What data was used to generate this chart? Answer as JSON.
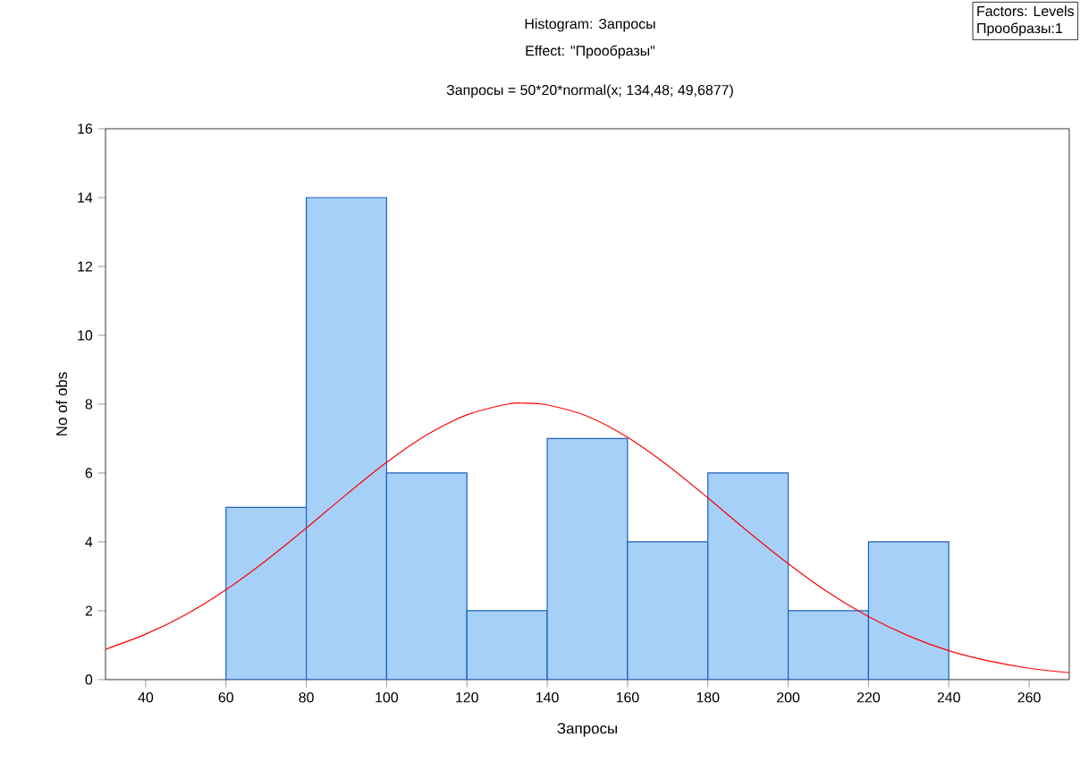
{
  "chart_data": {
    "type": "histogram",
    "title": "Histogram: Запросы",
    "subtitle": "Effect: \"Прообразы\"",
    "xlabel": "Запросы",
    "ylabel": "No of obs",
    "bins": [
      60,
      80,
      100,
      120,
      140,
      160,
      180,
      200,
      220,
      240
    ],
    "values": [
      5,
      14,
      6,
      2,
      7,
      4,
      6,
      2,
      4
    ],
    "color": "#a6d0f7",
    "xlim": [
      30,
      270
    ],
    "ylim": [
      0,
      16
    ],
    "xticks": [
      40,
      60,
      80,
      100,
      120,
      140,
      160,
      180,
      200,
      220,
      240,
      260
    ],
    "yticks": [
      0,
      2,
      4,
      6,
      8,
      10,
      12,
      14,
      16
    ],
    "series": [
      {
        "type": "line",
        "color": "#ff0000",
        "x": [
          30,
          40,
          50,
          60,
          70,
          80,
          90,
          100,
          110,
          120,
          130,
          134.48,
          140,
          150,
          160,
          170,
          180,
          190,
          200,
          210,
          220,
          230,
          240,
          250,
          260,
          270
        ],
        "values": [
          0.88,
          1.32,
          1.89,
          2.61,
          3.46,
          4.4,
          5.38,
          6.31,
          7.11,
          7.69,
          8.0,
          8.03,
          7.98,
          7.65,
          7.04,
          6.22,
          5.28,
          4.3,
          3.37,
          2.53,
          1.83,
          1.27,
          0.84,
          0.54,
          0.33,
          0.2
        ]
      }
    ],
    "annotations": [
      "Запросы = 50*20*normal(x; 134,48; 49,6877)",
      "Factors: Levels",
      "Прообразы:1"
    ]
  }
}
